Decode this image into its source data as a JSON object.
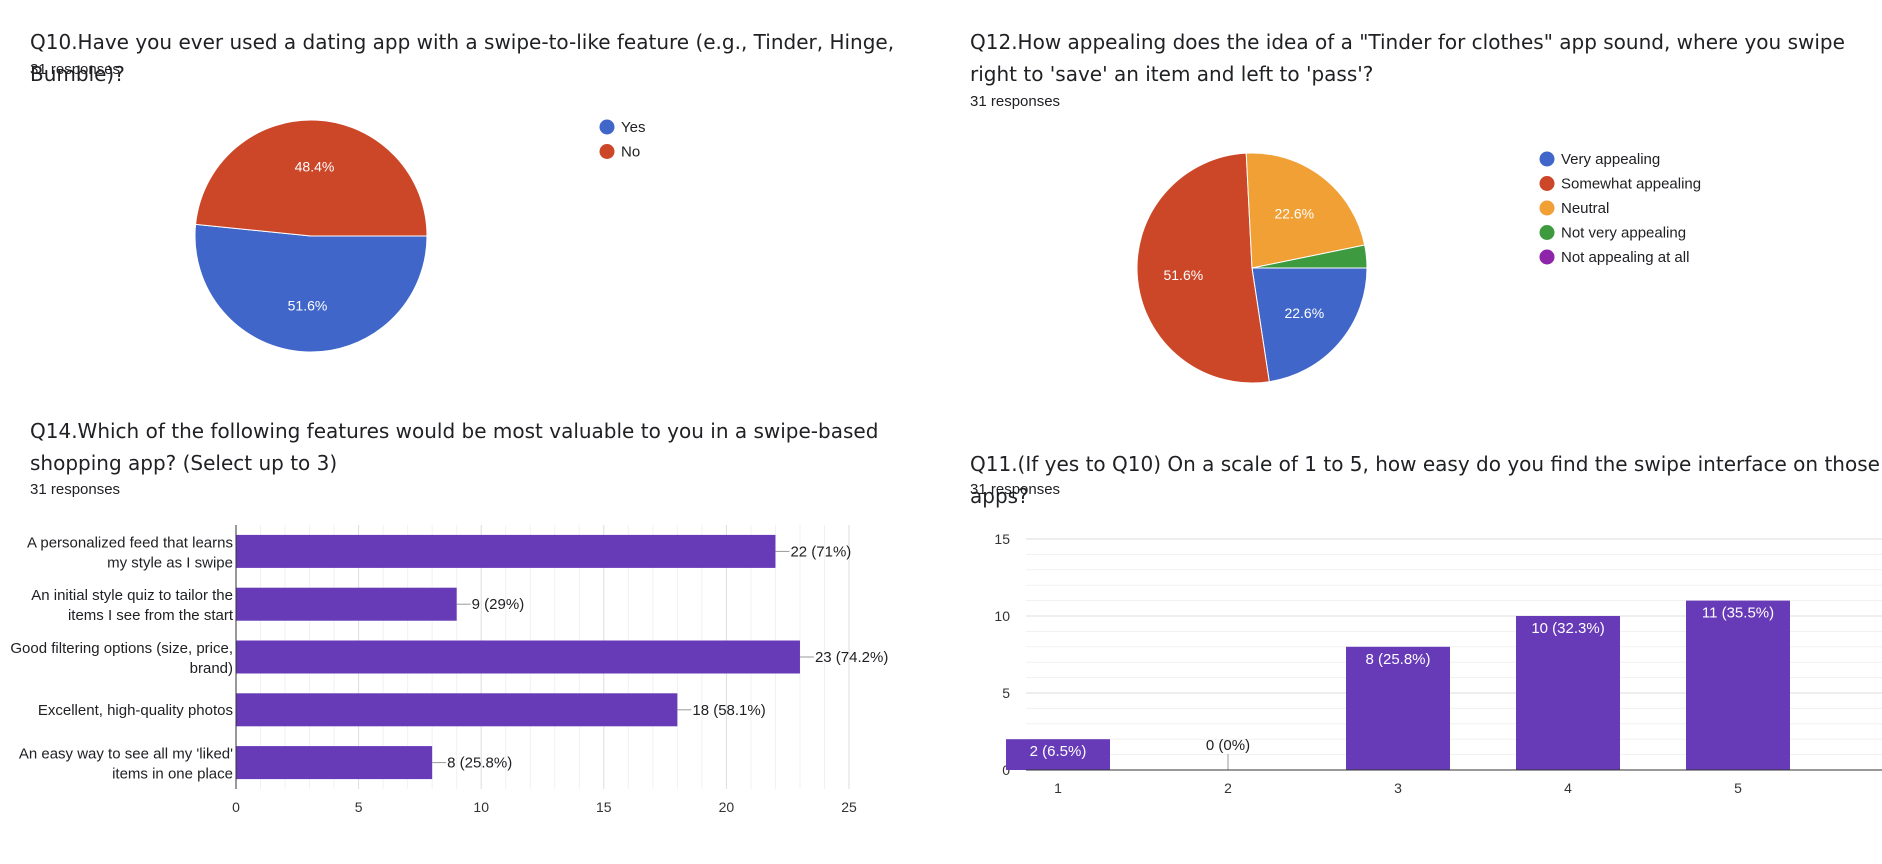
{
  "q10": {
    "title": "Q10.Have you ever used a dating app with a swipe-to-like feature (e.g., Tinder, Hinge, Bumble)?",
    "responses": "31 responses"
  },
  "q12": {
    "title": "Q12.How appealing does the idea of a \"Tinder for clothes\" app sound, where you swipe right to 'save' an item and left to 'pass'?",
    "responses": "31 responses"
  },
  "q14": {
    "title": "Q14.Which of the following features would be most valuable to you in a swipe-based shopping app? (Select up to 3)",
    "responses": "31 responses"
  },
  "q11": {
    "title": "Q11.(If yes to Q10) On a scale of 1 to 5, how easy do you find the swipe interface on those apps?",
    "responses": "31 responses"
  },
  "colors": {
    "blue": "#3f66c8",
    "red": "#cc4628",
    "orange": "#f0a035",
    "green": "#3e9a3e",
    "purple": "#8e24aa",
    "bar": "#673ab7",
    "grid": "#e6e6e6",
    "axis": "#333333"
  },
  "chart_data": [
    {
      "id": "q10",
      "type": "pie",
      "labels": [
        "Yes",
        "No"
      ],
      "values": [
        51.6,
        48.4
      ],
      "slice_labels": [
        "51.6%",
        "48.4%"
      ],
      "colors": [
        "#3f66c8",
        "#cc4628"
      ],
      "legend": "right"
    },
    {
      "id": "q12",
      "type": "pie",
      "labels": [
        "Very appealing",
        "Somewhat appealing",
        "Neutral",
        "Not very appealing",
        "Not appealing at all"
      ],
      "values": [
        22.6,
        51.6,
        22.6,
        3.2,
        0
      ],
      "slice_labels": [
        "22.6%",
        "51.6%",
        "22.6%",
        "",
        ""
      ],
      "colors": [
        "#3f66c8",
        "#cc4628",
        "#f0a035",
        "#3e9a3e",
        "#8e24aa"
      ],
      "legend": "right"
    },
    {
      "id": "q14",
      "type": "bar",
      "orientation": "horizontal",
      "categories": [
        [
          "A personalized feed that learns",
          "my style as I swipe"
        ],
        [
          "An initial style quiz to tailor the",
          "items I see from the start"
        ],
        [
          "Good filtering options (size, price,",
          "brand)"
        ],
        [
          "Excellent, high-quality photos"
        ],
        [
          "An easy way to see all my 'liked'",
          "items in one place"
        ]
      ],
      "values": [
        22,
        9,
        23,
        18,
        8
      ],
      "data_labels": [
        "22 (71%)",
        "9 (29%)",
        "23 (74.2%)",
        "18 (58.1%)",
        "8 (25.8%)"
      ],
      "xlim": [
        0,
        25
      ],
      "xticks": [
        "0",
        "5",
        "10",
        "15",
        "20",
        "25"
      ],
      "grid": true
    },
    {
      "id": "q11",
      "type": "bar",
      "orientation": "vertical",
      "categories": [
        "1",
        "2",
        "3",
        "4",
        "5"
      ],
      "values": [
        2,
        0,
        8,
        10,
        11
      ],
      "data_labels": [
        "2 (6.5%)",
        "0 (0%)",
        "8 (25.8%)",
        "10 (32.3%)",
        "11 (35.5%)"
      ],
      "ylim": [
        0,
        15
      ],
      "yticks": [
        "0",
        "5",
        "10",
        "15"
      ],
      "grid": true
    }
  ]
}
